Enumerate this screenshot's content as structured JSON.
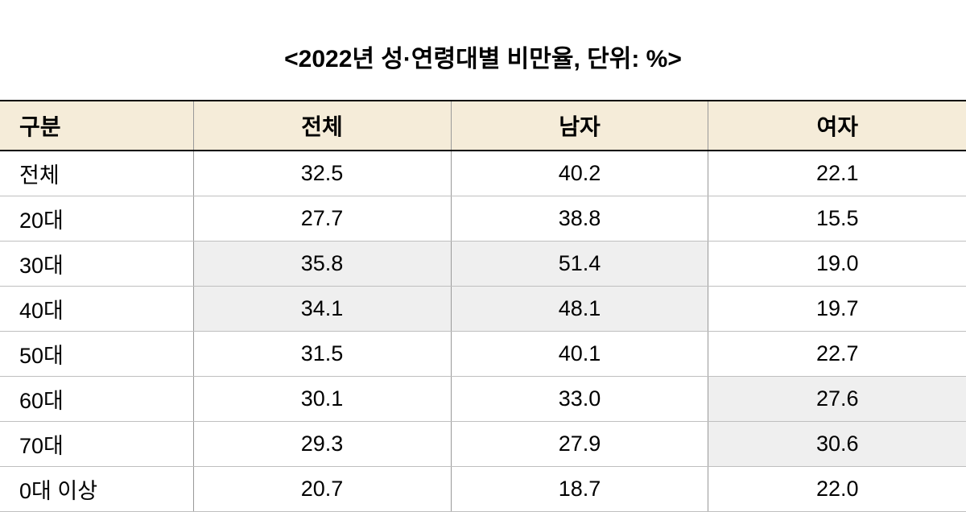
{
  "title": "<2022년 성·연령대별 비만율, 단위: %>",
  "table": {
    "columns": [
      "구분",
      "전체",
      "남자",
      "여자"
    ],
    "rows": [
      {
        "label": "전체",
        "values": [
          "32.5",
          "40.2",
          "22.1"
        ],
        "shaded": [
          false,
          false,
          false
        ]
      },
      {
        "label": "20대",
        "values": [
          "27.7",
          "38.8",
          "15.5"
        ],
        "shaded": [
          false,
          false,
          false
        ]
      },
      {
        "label": "30대",
        "values": [
          "35.8",
          "51.4",
          "19.0"
        ],
        "shaded": [
          true,
          true,
          false
        ]
      },
      {
        "label": "40대",
        "values": [
          "34.1",
          "48.1",
          "19.7"
        ],
        "shaded": [
          true,
          true,
          false
        ]
      },
      {
        "label": "50대",
        "values": [
          "31.5",
          "40.1",
          "22.7"
        ],
        "shaded": [
          false,
          false,
          false
        ]
      },
      {
        "label": "60대",
        "values": [
          "30.1",
          "33.0",
          "27.6"
        ],
        "shaded": [
          false,
          false,
          true
        ]
      },
      {
        "label": "70대",
        "values": [
          "29.3",
          "27.9",
          "30.6"
        ],
        "shaded": [
          false,
          false,
          true
        ]
      },
      {
        "label": "0대 이상",
        "values": [
          "20.7",
          "18.7",
          "22.0"
        ],
        "shaded": [
          false,
          false,
          false
        ]
      }
    ],
    "header_bg": "#f5ecd9",
    "shaded_bg": "#efefef",
    "border_color": "#999999",
    "header_border": "#000000",
    "title_fontsize": 30,
    "header_fontsize": 28,
    "cell_fontsize": 27,
    "background_color": "#ffffff"
  }
}
